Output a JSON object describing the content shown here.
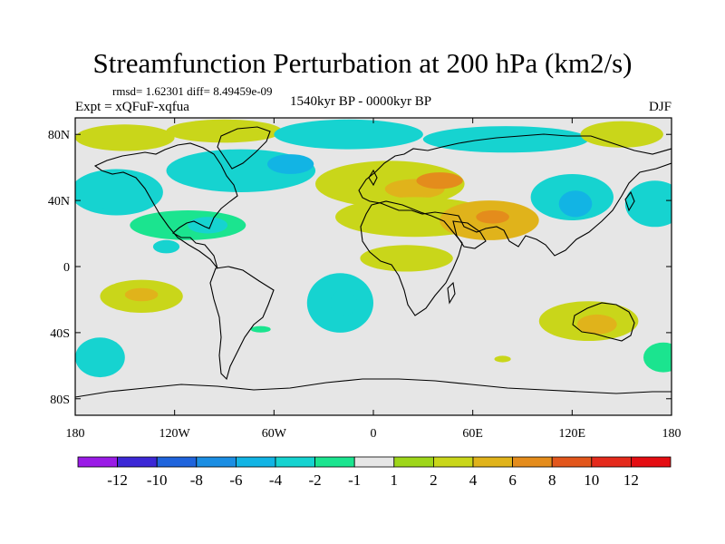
{
  "title": "Streamfunction Perturbation at 200 hPa (km2/s)",
  "stats": "rmsd= 1.62301 diff= 8.49459e-09",
  "experiment": "Expt = xQFuF-xqfua",
  "period": "1540kyr BP - 0000kyr BP",
  "season": "DJF",
  "chart_data": {
    "type": "heatmap",
    "title": "Streamfunction Perturbation at 200 hPa (km2/s)",
    "xlabel": "",
    "ylabel": "",
    "x_ticks": [
      "180",
      "120W",
      "60W",
      "0",
      "60E",
      "120E",
      "180"
    ],
    "x_tick_values": [
      -180,
      -120,
      -60,
      0,
      60,
      120,
      180
    ],
    "y_ticks": [
      "80N",
      "40N",
      "0",
      "40S",
      "80S"
    ],
    "y_tick_values": [
      80,
      40,
      0,
      -40,
      -80
    ],
    "xlim": [
      -180,
      180
    ],
    "ylim": [
      -90,
      90
    ],
    "colorbar": {
      "labels": [
        "-12",
        "-10",
        "-8",
        "-6",
        "-4",
        "-2",
        "-1",
        "1",
        "2",
        "4",
        "6",
        "8",
        "10",
        "12"
      ],
      "colors": [
        "#9a1be6",
        "#3c28d6",
        "#1f64dc",
        "#1b8ee3",
        "#12b4e4",
        "#16d3d0",
        "#1be48f",
        "#e6e6e6",
        "#9ed61a",
        "#c9d61a",
        "#e0b31b",
        "#e48c1c",
        "#e2561c",
        "#e42a1c",
        "#e40d12"
      ]
    },
    "anomalies": [
      {
        "lon": -150,
        "lat": 78,
        "rx": 30,
        "ry": 8,
        "value": 3
      },
      {
        "lon": -90,
        "lat": 82,
        "rx": 35,
        "ry": 7,
        "value": 2
      },
      {
        "lon": -15,
        "lat": 80,
        "rx": 45,
        "ry": 9,
        "value": -3
      },
      {
        "lon": 80,
        "lat": 77,
        "rx": 50,
        "ry": 8,
        "value": -3
      },
      {
        "lon": 150,
        "lat": 80,
        "rx": 25,
        "ry": 8,
        "value": 3
      },
      {
        "lon": -80,
        "lat": 58,
        "rx": 45,
        "ry": 13,
        "value": -4
      },
      {
        "lon": -50,
        "lat": 62,
        "rx": 14,
        "ry": 6,
        "value": -6
      },
      {
        "lon": -155,
        "lat": 45,
        "rx": 28,
        "ry": 14,
        "value": -3
      },
      {
        "lon": -168,
        "lat": 40,
        "rx": 10,
        "ry": 6,
        "value": -4
      },
      {
        "lon": 10,
        "lat": 50,
        "rx": 45,
        "ry": 14,
        "value": 2
      },
      {
        "lon": 25,
        "lat": 47,
        "rx": 18,
        "ry": 6,
        "value": 4
      },
      {
        "lon": 40,
        "lat": 52,
        "rx": 14,
        "ry": 5,
        "value": 6
      },
      {
        "lon": 25,
        "lat": 30,
        "rx": 48,
        "ry": 12,
        "value": 2
      },
      {
        "lon": 70,
        "lat": 28,
        "rx": 30,
        "ry": 12,
        "value": 4
      },
      {
        "lon": 72,
        "lat": 30,
        "rx": 10,
        "ry": 4,
        "value": 6
      },
      {
        "lon": 120,
        "lat": 42,
        "rx": 25,
        "ry": 14,
        "value": -3
      },
      {
        "lon": 122,
        "lat": 38,
        "rx": 10,
        "ry": 8,
        "value": -6
      },
      {
        "lon": 170,
        "lat": 38,
        "rx": 18,
        "ry": 14,
        "value": -3
      },
      {
        "lon": -112,
        "lat": 25,
        "rx": 35,
        "ry": 9,
        "value": -2
      },
      {
        "lon": -100,
        "lat": 25,
        "rx": 12,
        "ry": 5,
        "value": -4
      },
      {
        "lon": -125,
        "lat": 12,
        "rx": 8,
        "ry": 4,
        "value": -3
      },
      {
        "lon": 20,
        "lat": 5,
        "rx": 28,
        "ry": 8,
        "value": 2
      },
      {
        "lon": -140,
        "lat": -18,
        "rx": 25,
        "ry": 10,
        "value": 2
      },
      {
        "lon": -140,
        "lat": -17,
        "rx": 10,
        "ry": 4,
        "value": 4
      },
      {
        "lon": -20,
        "lat": -22,
        "rx": 20,
        "ry": 18,
        "value": -3
      },
      {
        "lon": -18,
        "lat": -22,
        "rx": 8,
        "ry": 8,
        "value": -4
      },
      {
        "lon": 130,
        "lat": -33,
        "rx": 30,
        "ry": 12,
        "value": 2
      },
      {
        "lon": 135,
        "lat": -35,
        "rx": 12,
        "ry": 6,
        "value": 4
      },
      {
        "lon": -165,
        "lat": -55,
        "rx": 15,
        "ry": 12,
        "value": -3
      },
      {
        "lon": 175,
        "lat": -55,
        "rx": 12,
        "ry": 9,
        "value": -2
      },
      {
        "lon": 78,
        "lat": -56,
        "rx": 5,
        "ry": 2,
        "value": 2
      },
      {
        "lon": -68,
        "lat": -38,
        "rx": 6,
        "ry": 2,
        "value": -2
      }
    ]
  }
}
